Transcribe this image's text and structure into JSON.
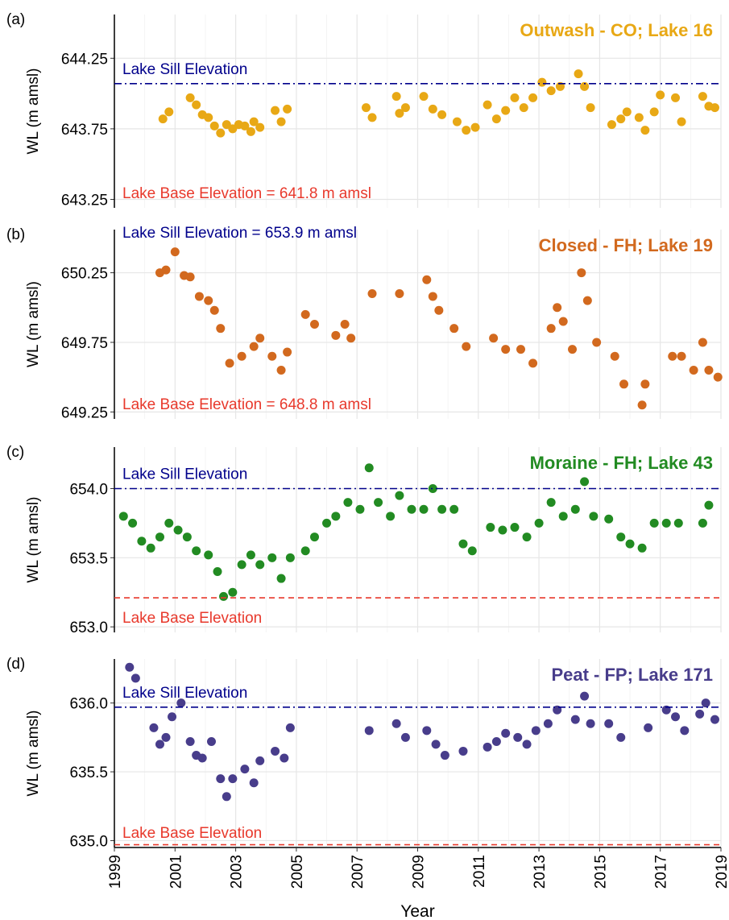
{
  "chart_data": [
    {
      "type": "scatter",
      "label": "(a)",
      "title": "Outwash - CO; Lake 16",
      "ylabel": "WL (m amsl)",
      "color": "#e8a815",
      "x": [
        2000.6,
        2000.8,
        2001.5,
        2001.7,
        2001.9,
        2002.1,
        2002.3,
        2002.5,
        2002.7,
        2002.9,
        2003.1,
        2003.3,
        2003.5,
        2003.6,
        2003.8,
        2004.3,
        2004.5,
        2004.7,
        2007.3,
        2007.5,
        2008.3,
        2008.4,
        2008.6,
        2009.2,
        2009.5,
        2009.8,
        2010.3,
        2010.6,
        2010.9,
        2011.3,
        2011.6,
        2011.9,
        2012.2,
        2012.5,
        2012.8,
        2013.1,
        2013.4,
        2013.7,
        2014.3,
        2014.5,
        2014.7,
        2015.4,
        2015.7,
        2015.9,
        2016.3,
        2016.5,
        2016.8,
        2017.0,
        2017.5,
        2017.7,
        2018.4,
        2018.6,
        2018.8
      ],
      "values": [
        643.82,
        643.87,
        643.97,
        643.92,
        643.85,
        643.83,
        643.77,
        643.72,
        643.78,
        643.75,
        643.78,
        643.77,
        643.73,
        643.8,
        643.76,
        643.88,
        643.8,
        643.89,
        643.9,
        643.83,
        643.98,
        643.86,
        643.9,
        643.98,
        643.89,
        643.85,
        643.8,
        643.74,
        643.76,
        643.92,
        643.82,
        643.88,
        643.97,
        643.9,
        643.97,
        644.08,
        644.02,
        644.05,
        644.14,
        644.05,
        643.9,
        643.78,
        643.82,
        643.87,
        643.83,
        643.74,
        643.87,
        643.99,
        643.97,
        643.8,
        643.98,
        643.91,
        643.9
      ],
      "ylim": [
        643.19,
        644.56
      ],
      "yticks": [
        643.25,
        643.75,
        644.25
      ],
      "annotations": [
        {
          "text": "Lake Sill Elevation",
          "value": 644.07,
          "color": "#00008b",
          "kind": "sill"
        },
        {
          "text": "Lake Base Elevation = 641.8 m amsl",
          "color": "#e8392c",
          "kind": "base"
        }
      ]
    },
    {
      "type": "scatter",
      "label": "(b)",
      "title": "Closed - FH; Lake 19",
      "ylabel": "WL (m amsl)",
      "color": "#d2691e",
      "x": [
        2000.5,
        2000.7,
        2001.0,
        2001.3,
        2001.5,
        2001.8,
        2002.1,
        2002.3,
        2002.5,
        2002.8,
        2003.2,
        2003.6,
        2003.8,
        2004.2,
        2004.5,
        2004.7,
        2005.3,
        2005.6,
        2006.3,
        2006.6,
        2006.8,
        2007.5,
        2008.4,
        2009.3,
        2009.5,
        2009.7,
        2010.2,
        2010.6,
        2011.5,
        2011.9,
        2012.4,
        2012.8,
        2013.4,
        2013.6,
        2013.8,
        2014.1,
        2014.4,
        2014.6,
        2014.9,
        2015.5,
        2015.8,
        2016.4,
        2016.5,
        2017.4,
        2017.7,
        2018.1,
        2018.4,
        2018.6,
        2018.9
      ],
      "values": [
        650.25,
        650.27,
        650.4,
        650.23,
        650.22,
        650.08,
        650.05,
        649.98,
        649.85,
        649.6,
        649.65,
        649.72,
        649.78,
        649.65,
        649.55,
        649.68,
        649.95,
        649.88,
        649.8,
        649.88,
        649.78,
        650.1,
        650.1,
        650.2,
        650.08,
        649.98,
        649.85,
        649.72,
        649.78,
        649.7,
        649.7,
        649.6,
        649.85,
        650.0,
        649.9,
        649.7,
        650.25,
        650.05,
        649.75,
        649.65,
        649.45,
        649.3,
        649.45,
        649.65,
        649.65,
        649.55,
        649.75,
        649.55,
        649.5
      ],
      "ylim": [
        649.2,
        650.56
      ],
      "yticks": [
        649.25,
        649.75,
        650.25
      ],
      "annotations": [
        {
          "text": "Lake Sill Elevation = 653.9 m amsl",
          "color": "#00008b",
          "kind": "sill"
        },
        {
          "text": "Lake Base Elevation = 648.8 m amsl",
          "color": "#e8392c",
          "kind": "base"
        }
      ]
    },
    {
      "type": "scatter",
      "label": "(c)",
      "title": "Moraine - FH; Lake 43",
      "ylabel": "WL (m amsl)",
      "color": "#228b22",
      "x": [
        1999.3,
        1999.6,
        1999.9,
        2000.2,
        2000.5,
        2000.8,
        2001.1,
        2001.4,
        2001.7,
        2002.1,
        2002.4,
        2002.6,
        2002.9,
        2003.2,
        2003.5,
        2003.8,
        2004.2,
        2004.5,
        2004.8,
        2005.3,
        2005.6,
        2006.0,
        2006.3,
        2006.7,
        2007.1,
        2007.4,
        2007.7,
        2008.1,
        2008.4,
        2008.8,
        2009.2,
        2009.5,
        2009.8,
        2010.2,
        2010.5,
        2010.8,
        2011.4,
        2011.8,
        2012.2,
        2012.6,
        2013.0,
        2013.4,
        2013.8,
        2014.2,
        2014.5,
        2014.8,
        2015.3,
        2015.7,
        2016.0,
        2016.4,
        2016.8,
        2017.2,
        2017.6,
        2018.4,
        2018.6
      ],
      "values": [
        653.8,
        653.75,
        653.62,
        653.57,
        653.65,
        653.75,
        653.7,
        653.65,
        653.55,
        653.52,
        653.4,
        653.22,
        653.25,
        653.45,
        653.52,
        653.45,
        653.5,
        653.35,
        653.5,
        653.55,
        653.65,
        653.75,
        653.8,
        653.9,
        653.85,
        654.15,
        653.9,
        653.8,
        653.95,
        653.85,
        653.85,
        654.0,
        653.85,
        653.85,
        653.6,
        653.55,
        653.72,
        653.7,
        653.72,
        653.65,
        653.75,
        653.9,
        653.8,
        653.85,
        654.05,
        653.8,
        653.78,
        653.65,
        653.6,
        653.57,
        653.75,
        653.75,
        653.75,
        653.75,
        653.88
      ],
      "ylim": [
        652.96,
        654.3
      ],
      "yticks": [
        {
          "value": 653,
          "label": "653.0"
        },
        653.5,
        {
          "value": 654,
          "label": "654.0"
        }
      ],
      "annotations": [
        {
          "text": "Lake Sill Elevation",
          "value": 654.0,
          "color": "#00008b",
          "kind": "sill"
        },
        {
          "text": "Lake Base Elevation",
          "value": 653.21,
          "color": "#e8392c",
          "kind": "base"
        }
      ]
    },
    {
      "type": "scatter",
      "label": "(d)",
      "title": "Peat - FP; Lake 171",
      "ylabel": "WL (m amsl)",
      "color": "#483d8b",
      "x": [
        1999.5,
        1999.7,
        2000.3,
        2000.5,
        2000.7,
        2000.9,
        2001.2,
        2001.5,
        2001.7,
        2001.9,
        2002.2,
        2002.5,
        2002.7,
        2002.9,
        2003.3,
        2003.6,
        2003.8,
        2004.3,
        2004.6,
        2004.8,
        2007.4,
        2008.3,
        2008.6,
        2009.3,
        2009.6,
        2009.9,
        2010.5,
        2011.3,
        2011.6,
        2011.9,
        2012.3,
        2012.6,
        2012.9,
        2013.3,
        2013.6,
        2014.2,
        2014.5,
        2014.7,
        2015.3,
        2015.7,
        2016.6,
        2017.2,
        2017.5,
        2017.8,
        2018.3,
        2018.5,
        2018.8
      ],
      "values": [
        636.26,
        636.18,
        635.82,
        635.7,
        635.75,
        635.9,
        636.0,
        635.72,
        635.62,
        635.6,
        635.72,
        635.45,
        635.32,
        635.45,
        635.52,
        635.42,
        635.58,
        635.65,
        635.6,
        635.82,
        635.8,
        635.85,
        635.75,
        635.8,
        635.7,
        635.62,
        635.65,
        635.68,
        635.72,
        635.78,
        635.75,
        635.7,
        635.8,
        635.85,
        635.95,
        635.88,
        636.05,
        635.85,
        635.85,
        635.75,
        635.82,
        635.95,
        635.9,
        635.8,
        635.92,
        636.0,
        635.88
      ],
      "ylim": [
        634.95,
        636.32
      ],
      "yticks": [
        {
          "value": 635,
          "label": "635.0"
        },
        635.5,
        {
          "value": 636,
          "label": "636.0"
        }
      ],
      "annotations": [
        {
          "text": "Lake Sill Elevation",
          "value": 635.97,
          "color": "#00008b",
          "kind": "sill"
        },
        {
          "text": "Lake Base Elevation",
          "value": 634.97,
          "color": "#e8392c",
          "kind": "base"
        }
      ],
      "xlim": [
        1999,
        2019
      ],
      "xticks": [
        1999,
        2001,
        2003,
        2005,
        2007,
        2009,
        2011,
        2013,
        2015,
        2017,
        2019
      ],
      "xlabel": "Year"
    }
  ]
}
